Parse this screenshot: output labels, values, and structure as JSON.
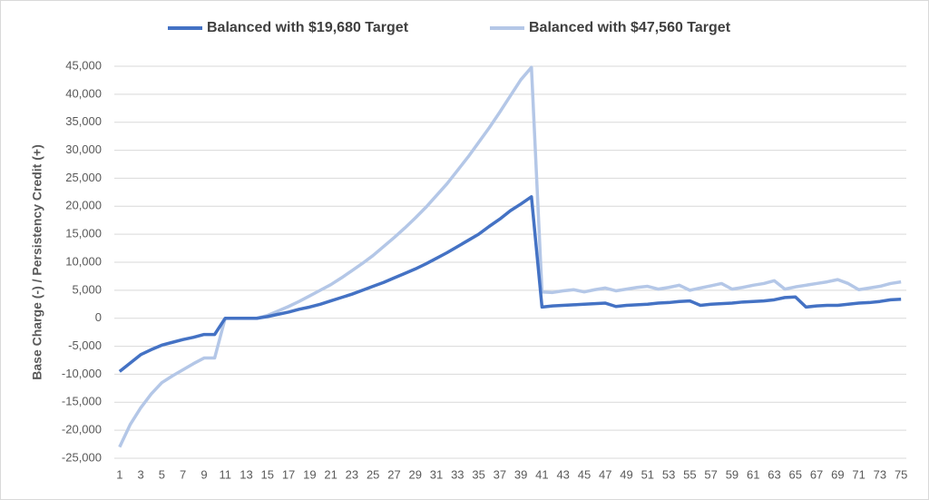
{
  "chart_data": {
    "type": "line",
    "y_label": "Base Charge (-) / Persistency Credit (+)",
    "categories": [
      1,
      null,
      3,
      null,
      5,
      null,
      7,
      null,
      9,
      null,
      11,
      null,
      13,
      null,
      15,
      null,
      17,
      null,
      19,
      null,
      21,
      null,
      23,
      null,
      25,
      null,
      27,
      null,
      29,
      null,
      31,
      null,
      33,
      null,
      35,
      null,
      37,
      null,
      39,
      null,
      41,
      null,
      43,
      null,
      45,
      null,
      47,
      null,
      49,
      null,
      51,
      null,
      53,
      null,
      55,
      null,
      57,
      null,
      59,
      null,
      61,
      null,
      63,
      null,
      65,
      null,
      67,
      null,
      69,
      null,
      71,
      null,
      73,
      null,
      75
    ],
    "series": [
      {
        "name": "Balanced with $19,680 Target",
        "color": "#4472c4",
        "values": [
          -9500,
          -8000,
          -6500,
          -5600,
          -4800,
          -4300,
          -3800,
          -3400,
          -2900,
          -2900,
          0,
          0,
          0,
          0,
          300,
          700,
          1100,
          1600,
          2000,
          2500,
          3100,
          3700,
          4300,
          5000,
          5700,
          6400,
          7200,
          8000,
          8800,
          9700,
          10700,
          11700,
          12800,
          13900,
          15000,
          16400,
          17700,
          19200,
          20400,
          21700,
          2000,
          2200,
          2300,
          2400,
          2500,
          2600,
          2700,
          2100,
          2300,
          2400,
          2500,
          2700,
          2800,
          3000,
          3100,
          2300,
          2500,
          2600,
          2700,
          2900,
          3000,
          3100,
          3300,
          3700,
          3800,
          2000,
          2200,
          2300,
          2300,
          2500,
          2700,
          2800,
          3000,
          3300,
          3400
        ]
      },
      {
        "name": "Balanced with $47,560 Target",
        "color": "#b4c7e7",
        "values": [
          -23000,
          -19000,
          -16000,
          -13500,
          -11500,
          -10300,
          -9200,
          -8100,
          -7100,
          -7100,
          0,
          0,
          0,
          0,
          500,
          1300,
          2100,
          3000,
          4000,
          5000,
          6000,
          7200,
          8500,
          9800,
          11200,
          12800,
          14400,
          16100,
          17900,
          19800,
          21900,
          24000,
          26400,
          28800,
          31400,
          34000,
          36800,
          39700,
          42600,
          44800,
          4700,
          4600,
          4900,
          5100,
          4700,
          5100,
          5400,
          4900,
          5200,
          5500,
          5700,
          5200,
          5500,
          5900,
          5000,
          5400,
          5800,
          6200,
          5200,
          5500,
          5900,
          6200,
          6700,
          5200,
          5600,
          5900,
          6200,
          6500,
          6900,
          6200,
          5100,
          5400,
          5700,
          6200,
          6500
        ]
      }
    ],
    "ylim": [
      -25000,
      45000
    ],
    "yticks": [
      {
        "value": -25000,
        "label": "-25,000"
      },
      {
        "value": -20000,
        "label": "-20,000"
      },
      {
        "value": -15000,
        "label": "-15,000"
      },
      {
        "value": -10000,
        "label": "-10,000"
      },
      {
        "value": -5000,
        "label": "-5,000"
      },
      0,
      {
        "value": 5000,
        "label": "5,000"
      },
      {
        "value": 10000,
        "label": "10,000"
      },
      {
        "value": 15000,
        "label": "15,000"
      },
      {
        "value": 20000,
        "label": "20,000"
      },
      {
        "value": 25000,
        "label": "25,000"
      },
      {
        "value": 30000,
        "label": "30,000"
      },
      {
        "value": 35000,
        "label": "35,000"
      },
      {
        "value": 40000,
        "label": "40,000"
      },
      {
        "value": 45000,
        "label": "45,000"
      }
    ],
    "grid": true,
    "legend": "top"
  }
}
